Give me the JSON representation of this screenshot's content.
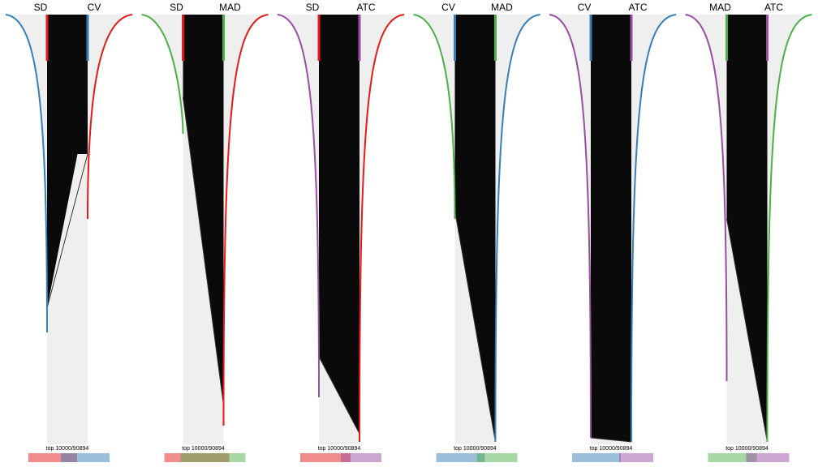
{
  "panels": [
    {
      "left": "SD",
      "right": "CV",
      "caption": "top 10000/90894"
    },
    {
      "left": "SD",
      "right": "MAD",
      "caption": "top 10000/90894"
    },
    {
      "left": "SD",
      "right": "ATC",
      "caption": "top 10000/90894"
    },
    {
      "left": "CV",
      "right": "MAD",
      "caption": "top 10000/90894"
    },
    {
      "left": "CV",
      "right": "ATC",
      "caption": "top 10000/90894"
    },
    {
      "left": "MAD",
      "right": "ATC",
      "caption": "top 10000/90894"
    }
  ]
}
